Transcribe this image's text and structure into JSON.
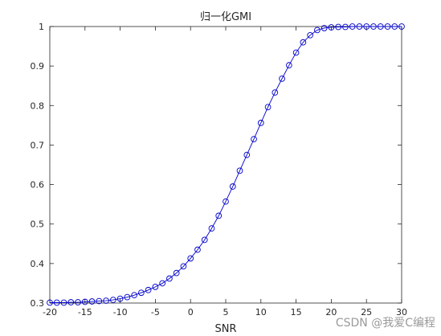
{
  "chart_data": {
    "type": "line",
    "title": "归一化GMI",
    "xlabel": "SNR",
    "ylabel": "",
    "xlim": [
      -20,
      30
    ],
    "ylim": [
      0.3,
      1.0
    ],
    "xticks": [
      -20,
      -15,
      -10,
      -5,
      0,
      5,
      10,
      15,
      20,
      25,
      30
    ],
    "yticks": [
      0.3,
      0.4,
      0.5,
      0.6,
      0.7,
      0.8,
      0.9,
      1.0
    ],
    "ytick_labels": [
      "0.3",
      "0.4",
      "0.5",
      "0.6",
      "0.7",
      "0.8",
      "0.9",
      "1"
    ],
    "grid": false,
    "legend": "none",
    "marker": "circle",
    "color": "#0000cc",
    "series": [
      {
        "x": [
          -20,
          -19,
          -18,
          -17,
          -16,
          -15,
          -14,
          -13,
          -12,
          -11,
          -10,
          -9,
          -8,
          -7,
          -6,
          -5,
          -4,
          -3,
          -2,
          -1,
          0,
          1,
          2,
          3,
          4,
          5,
          6,
          7,
          8,
          9,
          10,
          11,
          12,
          13,
          14,
          15,
          16,
          17,
          18,
          19,
          20,
          21,
          22,
          23,
          24,
          25,
          26,
          27,
          28,
          29,
          30
        ],
        "y": [
          0.301,
          0.301,
          0.301,
          0.302,
          0.302,
          0.303,
          0.304,
          0.305,
          0.306,
          0.308,
          0.311,
          0.315,
          0.32,
          0.326,
          0.333,
          0.341,
          0.35,
          0.362,
          0.376,
          0.393,
          0.413,
          0.435,
          0.46,
          0.489,
          0.521,
          0.557,
          0.595,
          0.635,
          0.675,
          0.715,
          0.756,
          0.796,
          0.833,
          0.868,
          0.902,
          0.934,
          0.96,
          0.978,
          0.991,
          0.996,
          0.998,
          0.999,
          0.999,
          1.0,
          1.0,
          1.0,
          1.0,
          1.0,
          1.0,
          1.0,
          1.0
        ]
      }
    ]
  },
  "watermark": "CSDN @我爱C编程"
}
